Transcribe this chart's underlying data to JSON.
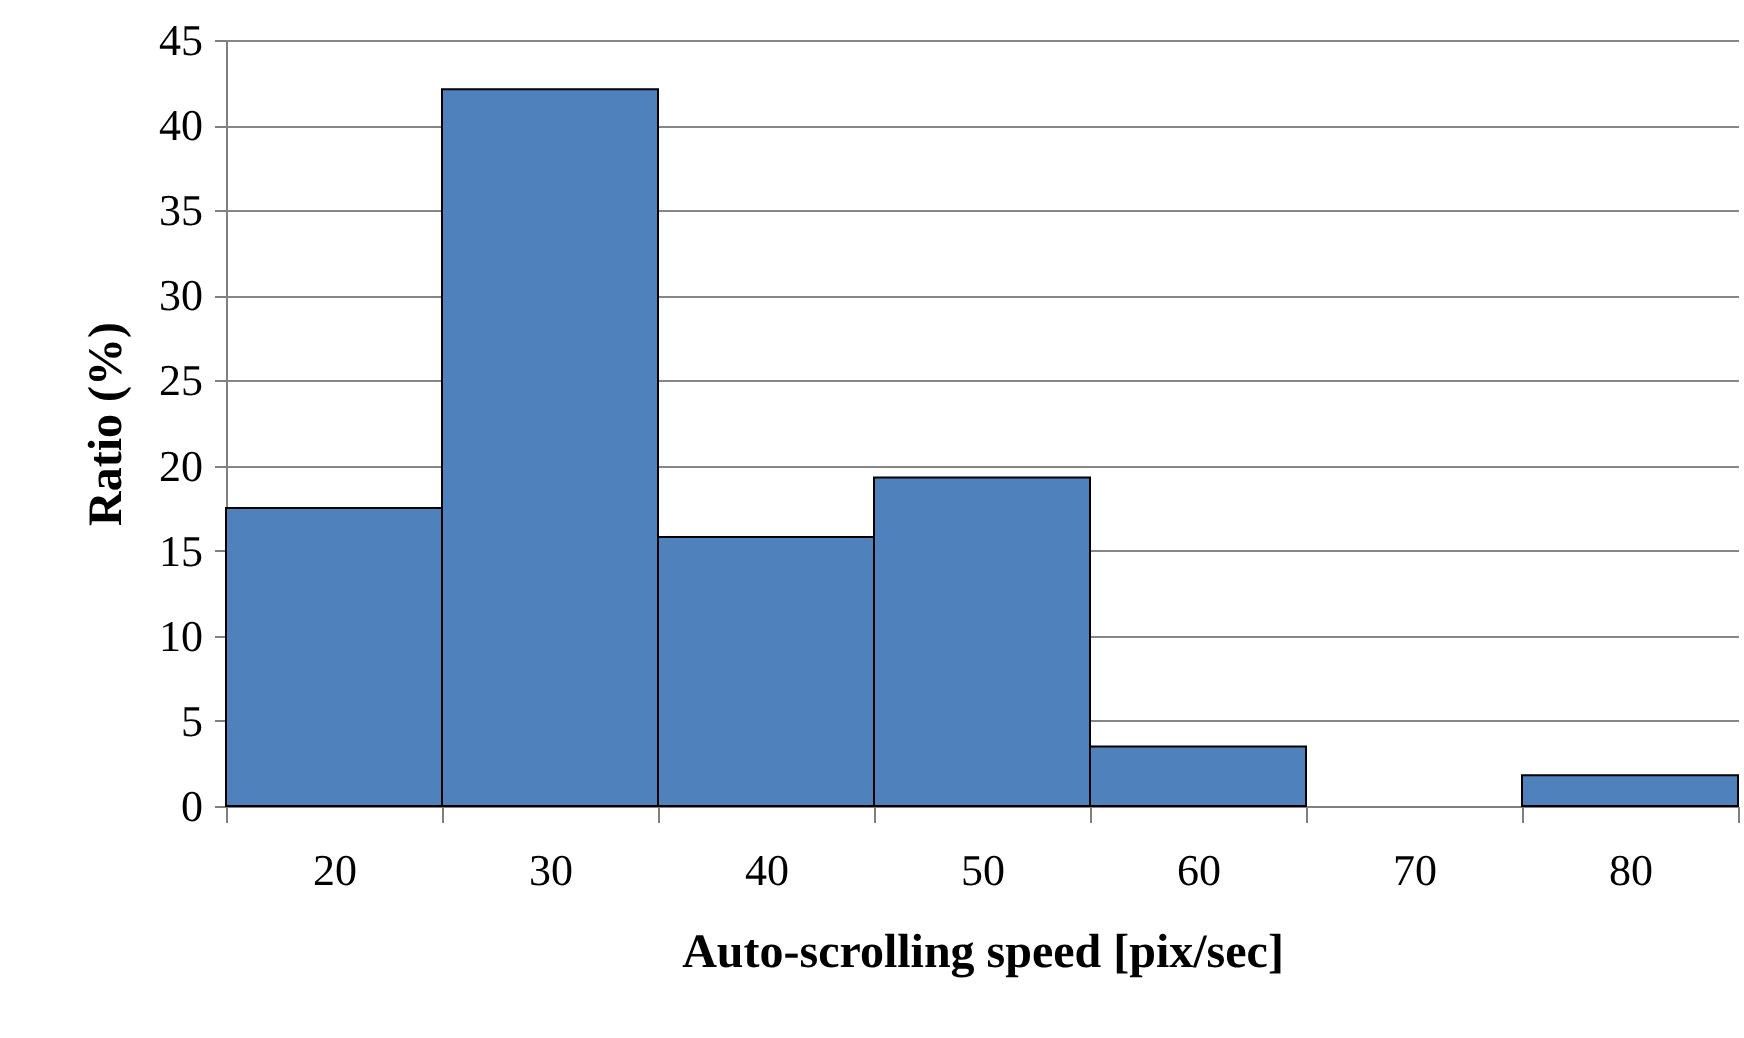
{
  "chart_data": {
    "type": "bar",
    "xlabel": "Auto-scrolling speed [pix/sec]",
    "ylabel": "Ratio (%)",
    "categories": [
      "20",
      "30",
      "40",
      "50",
      "60",
      "70",
      "80"
    ],
    "values": [
      17.5,
      42.1,
      15.8,
      19.3,
      3.5,
      0,
      1.8
    ],
    "color": "#4f81bd",
    "ylim": [
      0,
      45
    ],
    "yticks": [
      0,
      5,
      10,
      15,
      20,
      25,
      30,
      35,
      40,
      45
    ],
    "grid": "y"
  }
}
